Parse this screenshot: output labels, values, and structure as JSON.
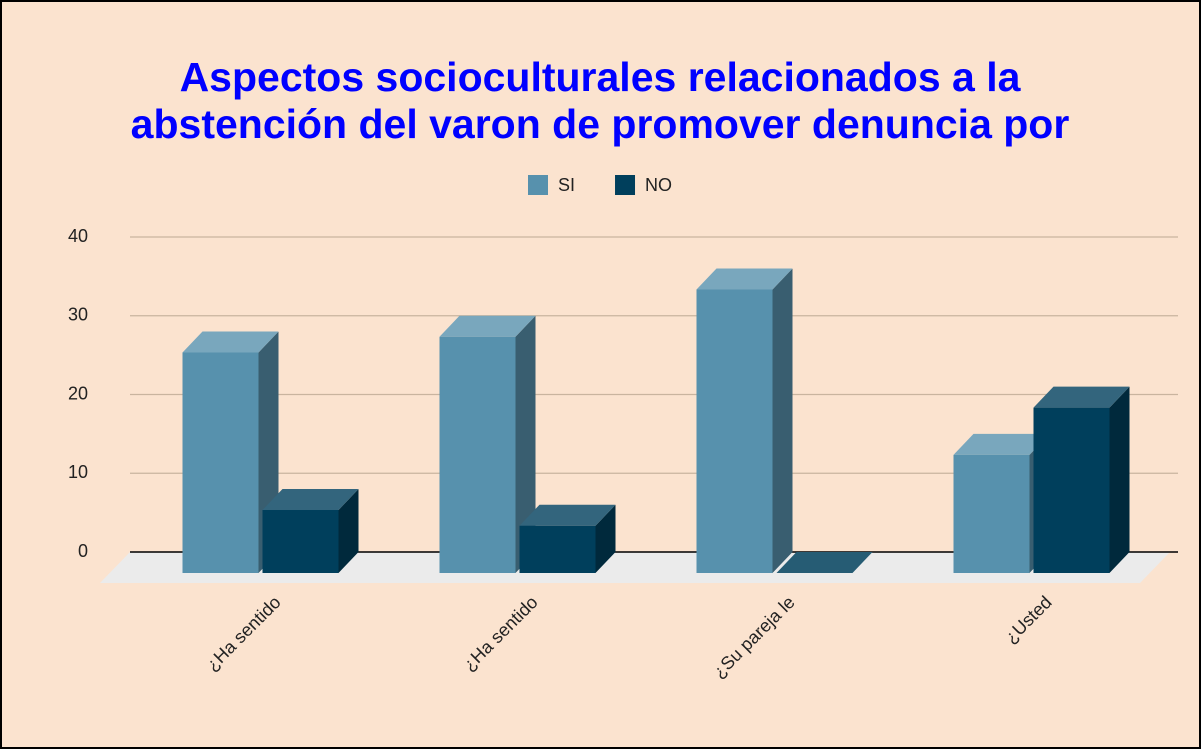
{
  "chart_data": {
    "type": "bar3d",
    "title": [
      "Aspectos socioculturales relacionados a la",
      "abstención del varon de promover denuncia por"
    ],
    "categories": [
      "¿Ha sentido",
      "¿Ha sentido",
      "¿Su pareja le",
      "¿Usted"
    ],
    "series": [
      {
        "name": "SI",
        "color": "#5791ad",
        "values": [
          28,
          30,
          36,
          15
        ]
      },
      {
        "name": "NO",
        "color": "#003f5c",
        "values": [
          8,
          6,
          0,
          21
        ]
      }
    ],
    "ylim": [
      0,
      40
    ],
    "yticks": [
      0,
      10,
      20,
      30,
      40
    ],
    "grid": true,
    "legend": "top"
  }
}
